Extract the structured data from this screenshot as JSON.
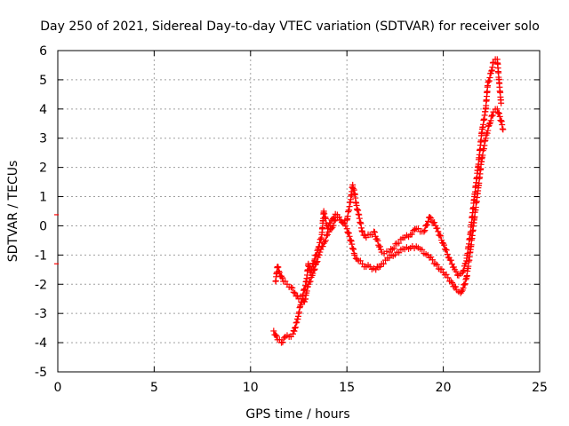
{
  "chart_data": {
    "type": "scatter",
    "title": "Day 250 of 2021, Sidereal Day-to-day VTEC variation (SDTVAR) for receiver solo",
    "xlabel": "GPS time / hours",
    "ylabel": "SDTVAR / TECUs",
    "xlim": [
      0,
      25
    ],
    "ylim": [
      -5,
      6
    ],
    "xticks": [
      "0",
      "5",
      "10",
      "15",
      "20",
      "25"
    ],
    "yticks": [
      "-5",
      "-4",
      "-3",
      "-2",
      "-1",
      "0",
      "1",
      "2",
      "3",
      "4",
      "5",
      "6"
    ],
    "grid": true,
    "marker": "+",
    "color": "#ff0000",
    "series": [
      {
        "values_lower_trace": [
          [
            11.2,
            -3.6
          ],
          [
            11.4,
            -3.9
          ],
          [
            11.6,
            -4.0
          ],
          [
            11.8,
            -3.8
          ],
          [
            12.0,
            -3.8
          ],
          [
            12.2,
            -3.7
          ],
          [
            12.3,
            -3.5
          ],
          [
            12.4,
            -3.3
          ],
          [
            12.5,
            -3.0
          ],
          [
            12.6,
            -2.7
          ],
          [
            12.7,
            -2.5
          ],
          [
            12.8,
            -2.6
          ],
          [
            12.9,
            -2.3
          ],
          [
            13.0,
            -2.0
          ],
          [
            13.2,
            -1.7
          ],
          [
            13.4,
            -1.3
          ],
          [
            13.6,
            -0.9
          ],
          [
            13.8,
            -0.6
          ],
          [
            14.0,
            -0.3
          ],
          [
            14.2,
            -0.1
          ],
          [
            14.4,
            0.2
          ],
          [
            14.6,
            0.3
          ],
          [
            14.8,
            0.1
          ],
          [
            15.0,
            -0.1
          ],
          [
            15.2,
            -0.5
          ],
          [
            15.4,
            -1.0
          ],
          [
            15.6,
            -1.2
          ],
          [
            15.8,
            -1.3
          ],
          [
            16.0,
            -1.4
          ],
          [
            16.2,
            -1.4
          ],
          [
            16.5,
            -1.5
          ],
          [
            16.8,
            -1.3
          ],
          [
            17.2,
            -1.1
          ],
          [
            17.6,
            -0.9
          ],
          [
            18.0,
            -0.8
          ],
          [
            18.4,
            -0.7
          ],
          [
            18.8,
            -0.8
          ],
          [
            19.2,
            -1.0
          ],
          [
            19.6,
            -1.3
          ],
          [
            20.0,
            -1.6
          ],
          [
            20.4,
            -1.9
          ],
          [
            20.7,
            -2.2
          ],
          [
            20.9,
            -2.3
          ],
          [
            21.0,
            -2.2
          ],
          [
            21.2,
            -1.8
          ],
          [
            21.4,
            -0.9
          ],
          [
            21.6,
            0.2
          ],
          [
            21.8,
            1.2
          ],
          [
            22.0,
            2.3
          ],
          [
            22.2,
            3.0
          ],
          [
            22.4,
            3.5
          ],
          [
            22.6,
            3.9
          ],
          [
            22.8,
            4.0
          ],
          [
            23.0,
            3.6
          ],
          [
            23.1,
            3.3
          ]
        ]
      },
      {
        "values_upper_trace": [
          [
            11.3,
            -1.9
          ],
          [
            11.4,
            -1.4
          ],
          [
            11.5,
            -1.6
          ],
          [
            11.7,
            -1.9
          ],
          [
            11.9,
            -2.0
          ],
          [
            12.1,
            -2.1
          ],
          [
            12.3,
            -2.3
          ],
          [
            12.5,
            -2.5
          ],
          [
            12.7,
            -2.4
          ],
          [
            12.9,
            -1.9
          ],
          [
            13.0,
            -1.3
          ],
          [
            13.1,
            -1.6
          ],
          [
            13.3,
            -1.2
          ],
          [
            13.5,
            -0.8
          ],
          [
            13.7,
            -0.3
          ],
          [
            13.8,
            0.5
          ],
          [
            14.0,
            -0.1
          ],
          [
            14.2,
            0.2
          ],
          [
            14.4,
            0.4
          ],
          [
            14.6,
            0.3
          ],
          [
            14.8,
            0.1
          ],
          [
            15.0,
            0.2
          ],
          [
            15.2,
            0.9
          ],
          [
            15.3,
            1.4
          ],
          [
            15.4,
            1.1
          ],
          [
            15.5,
            0.7
          ],
          [
            15.6,
            0.4
          ],
          [
            15.8,
            -0.2
          ],
          [
            16.0,
            -0.4
          ],
          [
            16.2,
            -0.3
          ],
          [
            16.4,
            -0.2
          ],
          [
            16.8,
            -0.9
          ],
          [
            17.2,
            -0.9
          ],
          [
            17.6,
            -0.6
          ],
          [
            18.0,
            -0.4
          ],
          [
            18.3,
            -0.3
          ],
          [
            18.6,
            -0.1
          ],
          [
            19.0,
            -0.2
          ],
          [
            19.3,
            0.3
          ],
          [
            19.6,
            0.0
          ],
          [
            20.0,
            -0.6
          ],
          [
            20.3,
            -1.1
          ],
          [
            20.6,
            -1.5
          ],
          [
            20.8,
            -1.7
          ],
          [
            21.0,
            -1.6
          ],
          [
            21.2,
            -1.2
          ],
          [
            21.4,
            -0.3
          ],
          [
            21.6,
            0.9
          ],
          [
            21.8,
            2.0
          ],
          [
            22.0,
            3.2
          ],
          [
            22.2,
            4.0
          ],
          [
            22.3,
            4.8
          ],
          [
            22.5,
            5.3
          ],
          [
            22.6,
            5.6
          ],
          [
            22.8,
            5.7
          ],
          [
            22.9,
            4.9
          ],
          [
            23.0,
            4.2
          ]
        ]
      }
    ],
    "edge_marks": [
      0.38,
      -1.3
    ]
  }
}
